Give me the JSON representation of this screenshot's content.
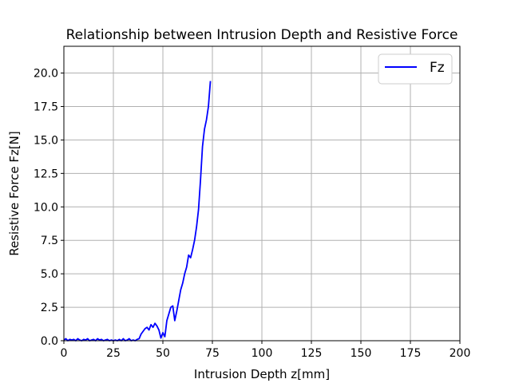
{
  "chart_data": {
    "type": "line",
    "title": "Relationship between Intrusion Depth and Resistive Force",
    "xlabel": "Intrusion Depth z[mm]",
    "ylabel": "Resistive Force Fz[N]",
    "xlim": [
      0,
      200
    ],
    "ylim": [
      0,
      22
    ],
    "xticks": [
      0,
      25,
      50,
      75,
      100,
      125,
      150,
      175,
      200
    ],
    "yticks": [
      0.0,
      2.5,
      5.0,
      7.5,
      10.0,
      12.5,
      15.0,
      17.5,
      20.0
    ],
    "xtick_labels": [
      "0",
      "25",
      "50",
      "75",
      "100",
      "125",
      "150",
      "175",
      "200"
    ],
    "ytick_labels": [
      "0.0",
      "2.5",
      "5.0",
      "7.5",
      "10.0",
      "12.5",
      "15.0",
      "17.5",
      "20.0"
    ],
    "grid": true,
    "legend_position": "top-right",
    "series": [
      {
        "name": "Fz",
        "color": "#0000ff",
        "x": [
          0,
          1,
          2,
          3,
          4,
          5,
          6,
          7,
          8,
          9,
          10,
          11,
          12,
          13,
          14,
          15,
          16,
          17,
          18,
          19,
          20,
          21,
          22,
          23,
          24,
          25,
          26,
          27,
          28,
          29,
          30,
          31,
          32,
          33,
          34,
          35,
          36,
          37,
          38,
          39,
          40,
          41,
          42,
          43,
          44,
          45,
          46,
          47,
          48,
          49,
          50,
          51,
          52,
          53,
          54,
          55,
          56,
          57,
          58,
          59,
          60,
          61,
          62,
          63,
          64,
          65,
          66,
          67,
          68,
          69,
          70,
          71,
          72,
          73,
          74
        ],
        "y": [
          0.05,
          0.15,
          0.0,
          0.1,
          0.05,
          0.1,
          0.0,
          0.15,
          0.05,
          0.0,
          0.1,
          0.05,
          0.15,
          0.0,
          0.05,
          0.1,
          0.0,
          0.15,
          0.05,
          0.1,
          0.0,
          0.05,
          0.1,
          0.0,
          0.05,
          0.0,
          0.05,
          0.0,
          0.1,
          0.0,
          0.15,
          0.0,
          0.05,
          0.15,
          0.0,
          0.05,
          0.0,
          0.1,
          0.15,
          0.5,
          0.7,
          0.9,
          1.0,
          0.8,
          1.2,
          1.0,
          1.3,
          1.1,
          0.8,
          0.2,
          0.6,
          0.3,
          1.5,
          2.0,
          2.5,
          2.6,
          1.5,
          2.2,
          3.0,
          3.8,
          4.3,
          5.0,
          5.5,
          6.4,
          6.2,
          6.8,
          7.5,
          8.5,
          9.8,
          12.0,
          14.5,
          15.8,
          16.5,
          17.5,
          19.4
        ]
      }
    ]
  }
}
